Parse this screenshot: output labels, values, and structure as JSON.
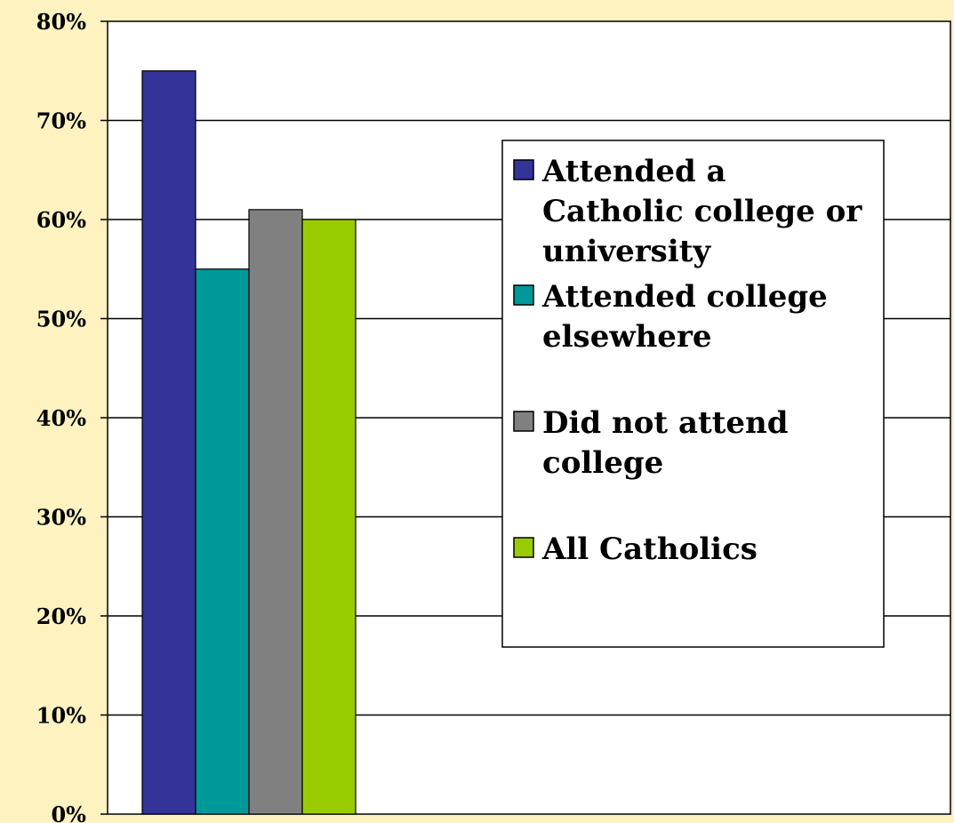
{
  "chart_data": {
    "type": "bar",
    "title": "",
    "xlabel": "",
    "ylabel": "",
    "ylim": [
      0,
      80
    ],
    "y_ticks": [
      "0%",
      "10%",
      "20%",
      "30%",
      "40%",
      "50%",
      "60%",
      "70%",
      "80%"
    ],
    "grid": "horizontal",
    "legend_position": "right",
    "categories": [
      ""
    ],
    "series": [
      {
        "name": "Attended a Catholic college or university",
        "legend_lines": [
          "Attended a",
          "Catholic college or",
          "university"
        ],
        "values": [
          75
        ],
        "color": "#333399"
      },
      {
        "name": "Attended college elsewhere",
        "legend_lines": [
          "Attended college",
          "elsewhere"
        ],
        "values": [
          55
        ],
        "color": "#009999"
      },
      {
        "name": "Did not attend college",
        "legend_lines": [
          "Did not attend",
          "college"
        ],
        "values": [
          61
        ],
        "color": "#808080"
      },
      {
        "name": "All Catholics",
        "legend_lines": [
          "All Catholics"
        ],
        "values": [
          60
        ],
        "color": "#99cc00"
      }
    ]
  },
  "colors": {
    "background": "#fdf2c0",
    "plot_area": "#ffffff",
    "gridline": "#000000"
  }
}
